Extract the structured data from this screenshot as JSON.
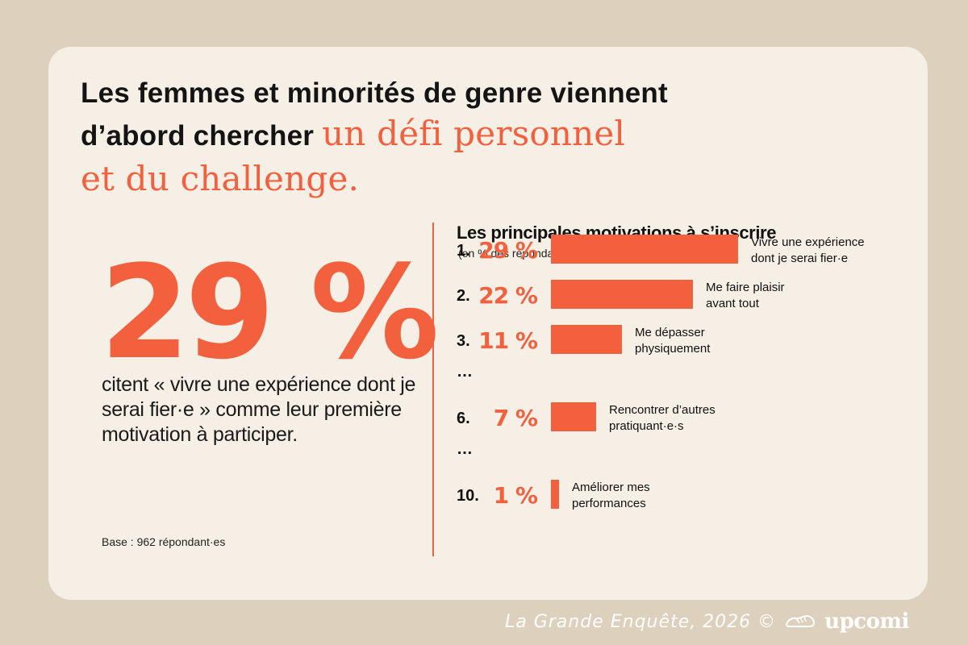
{
  "headline": {
    "line1": "Les femmes et minorités de genre viennent",
    "line2": "d’abord chercher",
    "accent1": "un défi personnel",
    "accent2": "et du challenge."
  },
  "highlight": {
    "value": "29 %",
    "description": "citent « vivre une expérience dont je serai fier·e » comme leur première motivation à participer.",
    "base": "Base : 962 répondant·es"
  },
  "chart_data": {
    "type": "bar",
    "title": "Les principales motivations à s’inscrire",
    "subtitle": "(en % des répondant·e·s)",
    "unit": "%",
    "rows": [
      {
        "rank": "1.",
        "value": 29,
        "label": "29 %",
        "category": [
          "Vivre une expérience",
          "dont je serai fier·e"
        ]
      },
      {
        "rank": "2.",
        "value": 22,
        "label": "22 %",
        "category": [
          "Me faire plaisir",
          "avant tout"
        ]
      },
      {
        "rank": "3.",
        "value": 11,
        "label": "11 %",
        "category": [
          "Me dépasser",
          "physiquement"
        ]
      },
      {
        "ellipsis": "…"
      },
      {
        "rank": "6.",
        "value": 7,
        "label": "7 %",
        "category": [
          "Rencontrer d’autres",
          "pratiquant·e·s"
        ]
      },
      {
        "ellipsis": "…"
      },
      {
        "rank": "10.",
        "value": 1,
        "label": "1 %",
        "category": [
          "Améliorer mes",
          "performances"
        ]
      }
    ],
    "colors": {
      "bar": "#f2603e",
      "text": "#111111"
    }
  },
  "footer": {
    "credit": "La Grande Enquête, 2026 ©",
    "brand": "upcomi",
    "logo_icon": "running-shoe-icon"
  }
}
